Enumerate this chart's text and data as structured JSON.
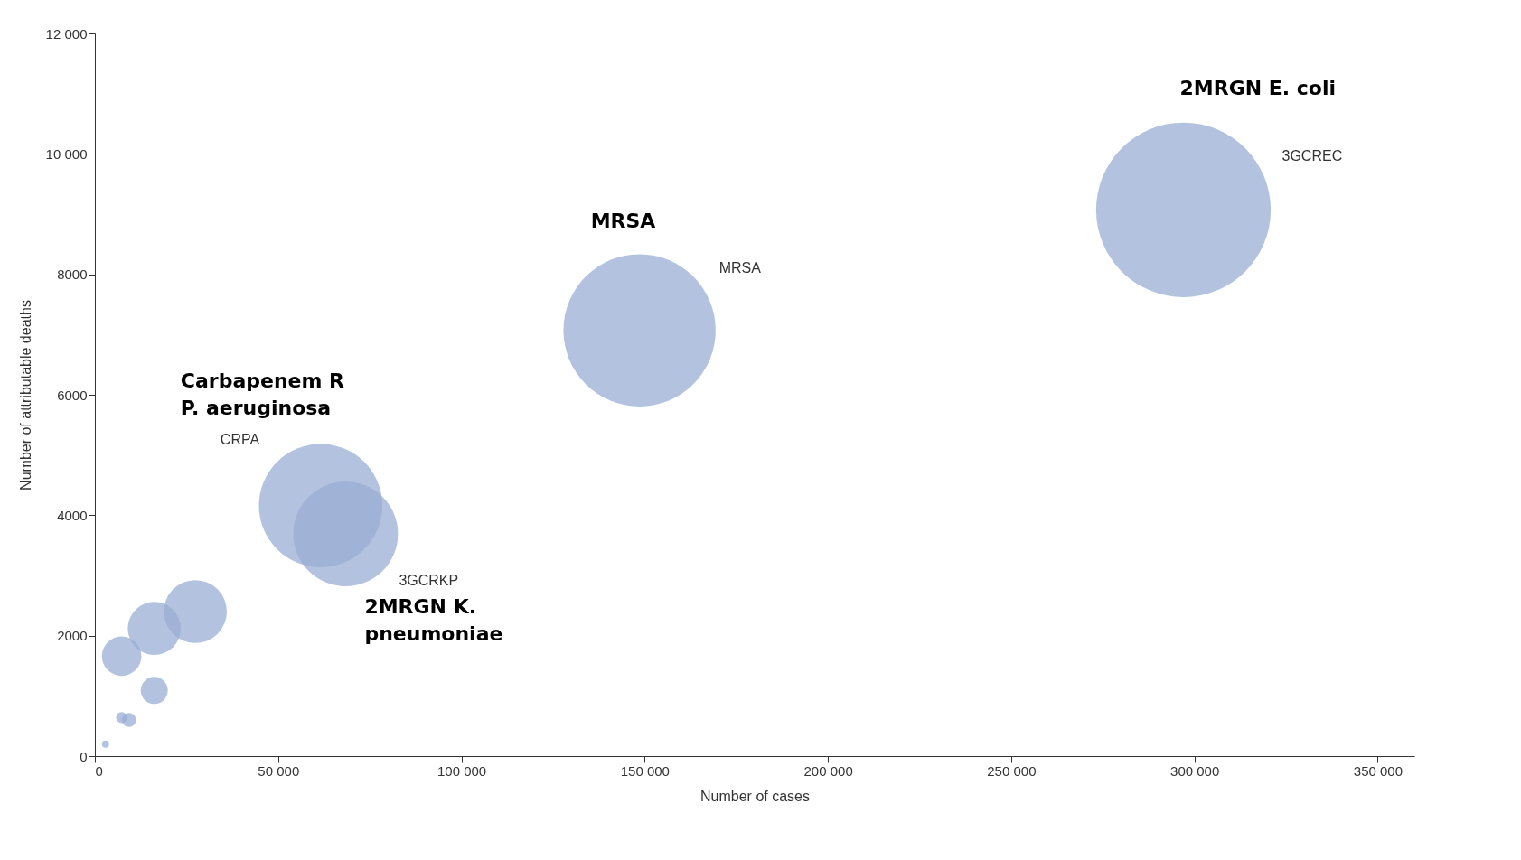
{
  "chart_data": {
    "type": "bubble",
    "xlabel": "Number of cases",
    "ylabel": "Number of attributable deaths",
    "x": [
      297000,
      148600,
      61600,
      68400,
      27400,
      16200,
      7300,
      16200,
      7300,
      9300,
      2900
    ],
    "values": [
      9070,
      7070,
      4160,
      3690,
      2400,
      2120,
      1660,
      1090,
      640,
      600,
      200
    ],
    "sizes": [
      1,
      0.76,
      0.5,
      0.36,
      0.13,
      0.092,
      0.051,
      0.024,
      0.004,
      0.0066,
      0.0017
    ],
    "color": "#9aaed4",
    "xlim": [
      0,
      360000
    ],
    "ylim": [
      0,
      12000
    ],
    "xticks": [
      0,
      {
        "value": 50000,
        "label": "50 000"
      },
      {
        "value": 100000,
        "label": "100 000"
      },
      {
        "value": 150000,
        "label": "150 000"
      },
      {
        "value": 200000,
        "label": "200 000"
      },
      {
        "value": 250000,
        "label": "250 000"
      },
      {
        "value": 300000,
        "label": "300 000"
      },
      {
        "value": 350000,
        "label": "350 000"
      }
    ],
    "yticks": [
      0,
      2000,
      4000,
      6000,
      8000,
      {
        "value": 10000,
        "label": "10 000"
      },
      {
        "value": 12000,
        "label": "12 000"
      }
    ],
    "grid": false,
    "legend": false,
    "annotations": [
      "2MRGN E. coli",
      "3GCREC",
      "MRSA",
      "MRSA",
      "Carbapenem R\nP. aeruginosa",
      "CRPA",
      "2MRGN K.\npneumoniae",
      "3GCRKP"
    ]
  }
}
